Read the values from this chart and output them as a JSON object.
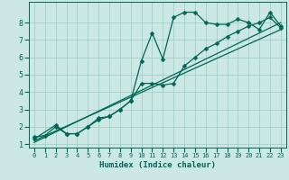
{
  "xlabel": "Humidex (Indice chaleur)",
  "bg_color": "#cce8e4",
  "grid_color": "#99ccc4",
  "line_color": "#006655",
  "xlim": [
    -0.5,
    23.5
  ],
  "ylim": [
    0.8,
    9.2
  ],
  "xticks": [
    0,
    1,
    2,
    3,
    4,
    5,
    6,
    7,
    8,
    9,
    10,
    11,
    12,
    13,
    14,
    15,
    16,
    17,
    18,
    19,
    20,
    21,
    22,
    23
  ],
  "yticks": [
    1,
    2,
    3,
    4,
    5,
    6,
    7,
    8
  ],
  "line1_x": [
    0,
    1,
    2,
    3,
    4,
    5,
    6,
    7,
    8,
    9,
    10,
    11,
    12,
    13,
    14,
    15,
    16,
    17,
    18,
    19,
    20,
    21,
    22,
    23
  ],
  "line1_y": [
    1.4,
    1.5,
    2.0,
    1.6,
    1.6,
    2.0,
    2.5,
    2.6,
    3.0,
    3.5,
    5.8,
    7.4,
    5.9,
    8.3,
    8.6,
    8.6,
    8.0,
    7.9,
    7.9,
    8.2,
    8.0,
    7.6,
    8.6,
    7.8
  ],
  "line2_x": [
    0,
    23
  ],
  "line2_y": [
    1.1,
    8.0
  ],
  "line3_x": [
    0,
    23
  ],
  "line3_y": [
    1.2,
    7.6
  ],
  "line4_x": [
    0,
    2,
    3,
    4,
    5,
    6,
    7,
    8,
    9,
    10,
    11,
    12,
    13,
    14,
    15,
    16,
    17,
    18,
    19,
    20,
    21,
    22,
    23
  ],
  "line4_y": [
    1.3,
    2.1,
    1.6,
    1.6,
    2.0,
    2.4,
    2.6,
    3.0,
    3.5,
    4.5,
    4.5,
    4.4,
    4.5,
    5.5,
    6.0,
    6.5,
    6.8,
    7.2,
    7.5,
    7.8,
    8.0,
    8.3,
    7.7
  ]
}
